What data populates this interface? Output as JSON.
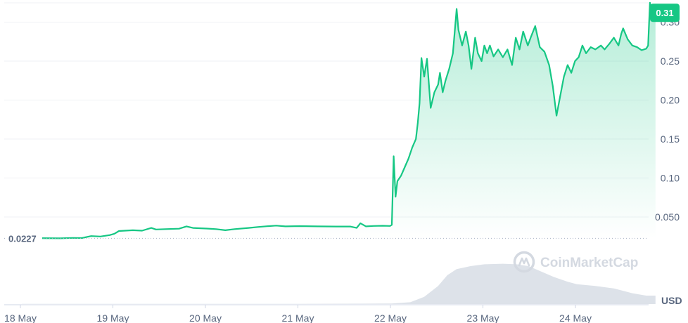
{
  "chart_data": {
    "type": "area",
    "start_price_label": "0.0227",
    "current_price_label": "0.31",
    "currency": "USD",
    "watermark": "CoinMarketCap",
    "y_ticks": [
      {
        "value": 0.05,
        "label": "0.050"
      },
      {
        "value": 0.1,
        "label": "0.10"
      },
      {
        "value": 0.15,
        "label": "0.15"
      },
      {
        "value": 0.2,
        "label": "0.20"
      },
      {
        "value": 0.25,
        "label": "0.25"
      },
      {
        "value": 0.3,
        "label": "0.30"
      }
    ],
    "x_ticks": [
      {
        "t": 0,
        "label": "18 May"
      },
      {
        "t": 1,
        "label": "19 May"
      },
      {
        "t": 2,
        "label": "20 May"
      },
      {
        "t": 3,
        "label": "21 May"
      },
      {
        "t": 4,
        "label": "22 May"
      },
      {
        "t": 5,
        "label": "23 May"
      },
      {
        "t": 6,
        "label": "24 May"
      }
    ],
    "ylim": [
      -0.0013,
      0.3248
    ],
    "xlim": [
      0,
      6.85
    ],
    "grid": true,
    "price_series": [
      [
        0.0,
        0.023
      ],
      [
        0.42,
        0.0227
      ],
      [
        0.55,
        0.0232
      ],
      [
        0.65,
        0.023
      ],
      [
        0.75,
        0.0255
      ],
      [
        0.85,
        0.025
      ],
      [
        0.95,
        0.0268
      ],
      [
        1.0,
        0.0285
      ],
      [
        1.05,
        0.032
      ],
      [
        1.2,
        0.033
      ],
      [
        1.3,
        0.0325
      ],
      [
        1.4,
        0.036
      ],
      [
        1.45,
        0.034
      ],
      [
        1.55,
        0.0345
      ],
      [
        1.7,
        0.035
      ],
      [
        1.78,
        0.038
      ],
      [
        1.85,
        0.036
      ],
      [
        2.0,
        0.0352
      ],
      [
        2.1,
        0.0345
      ],
      [
        2.2,
        0.033
      ],
      [
        2.3,
        0.0345
      ],
      [
        2.45,
        0.036
      ],
      [
        2.55,
        0.0372
      ],
      [
        2.65,
        0.0382
      ],
      [
        2.75,
        0.039
      ],
      [
        2.85,
        0.038
      ],
      [
        3.0,
        0.0383
      ],
      [
        3.2,
        0.038
      ],
      [
        3.4,
        0.0378
      ],
      [
        3.55,
        0.0378
      ],
      [
        3.62,
        0.036
      ],
      [
        3.66,
        0.042
      ],
      [
        3.72,
        0.038
      ],
      [
        3.8,
        0.0385
      ],
      [
        3.9,
        0.0388
      ],
      [
        3.98,
        0.0385
      ],
      [
        4.0,
        0.04
      ],
      [
        4.02,
        0.128
      ],
      [
        4.04,
        0.076
      ],
      [
        4.06,
        0.096
      ],
      [
        4.1,
        0.103
      ],
      [
        4.14,
        0.114
      ],
      [
        4.18,
        0.125
      ],
      [
        4.22,
        0.139
      ],
      [
        4.26,
        0.15
      ],
      [
        4.28,
        0.17
      ],
      [
        4.3,
        0.196
      ],
      [
        4.32,
        0.254
      ],
      [
        4.35,
        0.23
      ],
      [
        4.38,
        0.253
      ],
      [
        4.42,
        0.19
      ],
      [
        4.46,
        0.21
      ],
      [
        4.5,
        0.22
      ],
      [
        4.52,
        0.235
      ],
      [
        4.55,
        0.21
      ],
      [
        4.58,
        0.225
      ],
      [
        4.62,
        0.24
      ],
      [
        4.66,
        0.26
      ],
      [
        4.7,
        0.317
      ],
      [
        4.72,
        0.29
      ],
      [
        4.76,
        0.27
      ],
      [
        4.8,
        0.288
      ],
      [
        4.83,
        0.27
      ],
      [
        4.86,
        0.24
      ],
      [
        4.9,
        0.28
      ],
      [
        4.93,
        0.26
      ],
      [
        4.97,
        0.25
      ],
      [
        5.0,
        0.27
      ],
      [
        5.03,
        0.26
      ],
      [
        5.06,
        0.27
      ],
      [
        5.1,
        0.256
      ],
      [
        5.15,
        0.265
      ],
      [
        5.2,
        0.255
      ],
      [
        5.25,
        0.265
      ],
      [
        5.3,
        0.245
      ],
      [
        5.34,
        0.28
      ],
      [
        5.38,
        0.265
      ],
      [
        5.42,
        0.288
      ],
      [
        5.47,
        0.27
      ],
      [
        5.5,
        0.28
      ],
      [
        5.55,
        0.295
      ],
      [
        5.6,
        0.268
      ],
      [
        5.65,
        0.262
      ],
      [
        5.7,
        0.245
      ],
      [
        5.74,
        0.218
      ],
      [
        5.78,
        0.18
      ],
      [
        5.82,
        0.205
      ],
      [
        5.86,
        0.23
      ],
      [
        5.9,
        0.245
      ],
      [
        5.94,
        0.235
      ],
      [
        5.98,
        0.25
      ],
      [
        6.02,
        0.255
      ],
      [
        6.06,
        0.27
      ],
      [
        6.1,
        0.26
      ],
      [
        6.15,
        0.268
      ],
      [
        6.2,
        0.265
      ],
      [
        6.26,
        0.27
      ],
      [
        6.3,
        0.265
      ],
      [
        6.35,
        0.272
      ],
      [
        6.4,
        0.28
      ],
      [
        6.45,
        0.27
      ],
      [
        6.48,
        0.285
      ],
      [
        6.5,
        0.292
      ],
      [
        6.55,
        0.278
      ],
      [
        6.6,
        0.27
      ],
      [
        6.65,
        0.268
      ],
      [
        6.7,
        0.264
      ],
      [
        6.75,
        0.266
      ],
      [
        6.77,
        0.27
      ],
      [
        6.79,
        0.325
      ],
      [
        6.81,
        0.31
      ],
      [
        6.83,
        0.315
      ],
      [
        6.85,
        0.312
      ]
    ],
    "volume_series": [
      [
        0.0,
        0.2
      ],
      [
        1.0,
        0.3
      ],
      [
        2.0,
        0.4
      ],
      [
        3.0,
        0.4
      ],
      [
        4.0,
        0.8
      ],
      [
        4.2,
        3.0
      ],
      [
        4.35,
        12.0
      ],
      [
        4.5,
        30.0
      ],
      [
        4.6,
        48.0
      ],
      [
        4.7,
        58.0
      ],
      [
        4.85,
        63.0
      ],
      [
        5.0,
        66.0
      ],
      [
        5.2,
        67.0
      ],
      [
        5.35,
        66.0
      ],
      [
        5.48,
        63.0
      ],
      [
        5.6,
        55.0
      ],
      [
        5.75,
        45.0
      ],
      [
        5.9,
        37.0
      ],
      [
        6.0,
        33.0
      ],
      [
        6.2,
        30.0
      ],
      [
        6.4,
        26.0
      ],
      [
        6.6,
        18.0
      ],
      [
        6.75,
        14.0
      ],
      [
        6.85,
        14.0
      ]
    ]
  },
  "colors": {
    "line": "#16c784",
    "badge": "#16c784",
    "grid": "#eff2f5",
    "volume": "#dde2e9",
    "tick_text": "#58667e",
    "baseline_dots": "#a6b0c3"
  }
}
